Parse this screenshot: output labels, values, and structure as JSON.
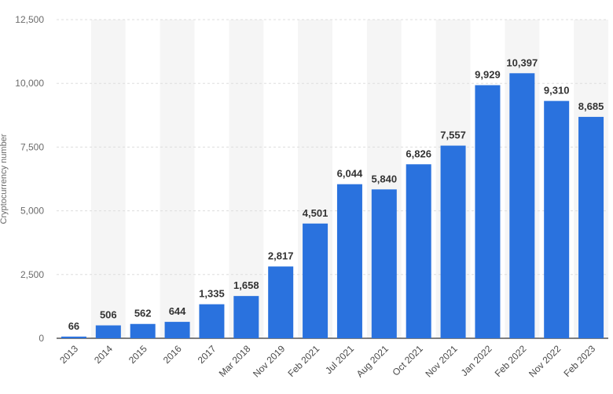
{
  "chart_data": {
    "type": "bar",
    "title": "",
    "xlabel": "",
    "ylabel": "Cryptocurrency number",
    "ylim": [
      0,
      12500
    ],
    "yticks": [
      0,
      2500,
      5000,
      7500,
      10000,
      12500
    ],
    "ytick_labels": [
      "0",
      "2,500",
      "5,000",
      "7,500",
      "10,000",
      "12,500"
    ],
    "grid": true,
    "categories": [
      "2013",
      "2014",
      "2015",
      "2016",
      "2017",
      "Mar 2018",
      "Nov 2019",
      "Feb 2021",
      "Jul 2021",
      "Aug 2021",
      "Oct 2021",
      "Nov 2021",
      "Jan 2022",
      "Feb 2022",
      "Nov 2022",
      "Feb 2023"
    ],
    "values": [
      66,
      506,
      562,
      644,
      1335,
      1658,
      2817,
      4501,
      6044,
      5840,
      6826,
      7557,
      9929,
      10397,
      9310,
      8685
    ],
    "value_labels": [
      "66",
      "506",
      "562",
      "644",
      "1,335",
      "1,658",
      "2,817",
      "4,501",
      "6,044",
      "5,840",
      "6,826",
      "7,557",
      "9,929",
      "10,397",
      "9,310",
      "8,685"
    ],
    "bar_color": "#2a72de",
    "band_color": "#f5f5f5",
    "grid_color": "#dddddd"
  }
}
